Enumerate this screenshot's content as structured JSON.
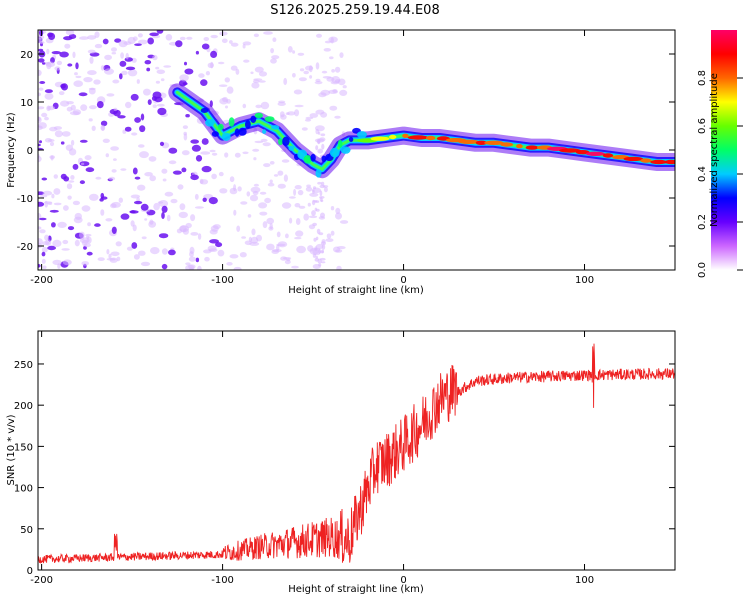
{
  "title": "S126.2025.259.19.44.E08",
  "chart_data": [
    {
      "type": "heatmap",
      "xlabel": "Height of straight line (km)",
      "ylabel": "Frequency (Hz)",
      "xlim": [
        -202,
        150
      ],
      "ylim": [
        -25,
        25
      ],
      "xticks": [
        -200,
        -100,
        0,
        100
      ],
      "yticks": [
        -20,
        -10,
        0,
        10,
        20
      ],
      "ridge": {
        "x": [
          -125,
          -110,
          -100,
          -90,
          -80,
          -70,
          -60,
          -50,
          -45,
          -40,
          -35,
          -30,
          -25,
          -20,
          -10,
          0,
          10,
          20,
          30,
          40,
          50,
          60,
          70,
          80,
          90,
          100,
          110,
          120,
          130,
          140,
          150
        ],
        "y": [
          12,
          8,
          3,
          5,
          6,
          4,
          0,
          -3,
          -4,
          -2,
          1,
          2,
          2,
          2,
          2.5,
          3,
          2.5,
          2.5,
          2,
          1.5,
          1.5,
          1,
          0.5,
          0.5,
          0,
          -0.5,
          -1,
          -1.5,
          -2,
          -2.5,
          -2.5
        ]
      },
      "colorbar": {
        "label": "Normalized spectral amplitude",
        "ticks": [
          "0.0",
          "0.2",
          "0.4",
          "0.6",
          "0.8"
        ],
        "range": [
          0,
          1
        ],
        "colors": [
          "#ffffff",
          "#cc66ff",
          "#6600ff",
          "#0000ff",
          "#00ccff",
          "#00ff66",
          "#66ff00",
          "#ffff00",
          "#ff6600",
          "#ff0000",
          "#ff0066"
        ]
      }
    },
    {
      "type": "line",
      "xlabel": "Height of straight line (km)",
      "ylabel": "SNR (10 * v/v)",
      "xlim": [
        -202,
        150
      ],
      "ylim": [
        0,
        290
      ],
      "xticks": [
        -200,
        -100,
        0,
        100
      ],
      "yticks": [
        0,
        50,
        100,
        150,
        200,
        250
      ],
      "color": "#ee2222",
      "envelope": {
        "x": [
          -202,
          -150,
          -100,
          -80,
          -60,
          -40,
          -30,
          -25,
          -20,
          -15,
          -10,
          0,
          10,
          20,
          30,
          40,
          60,
          100,
          150
        ],
        "y": [
          12,
          15,
          18,
          25,
          30,
          35,
          30,
          60,
          90,
          120,
          125,
          145,
          170,
          200,
          215,
          228,
          232,
          235,
          237
        ]
      }
    }
  ]
}
